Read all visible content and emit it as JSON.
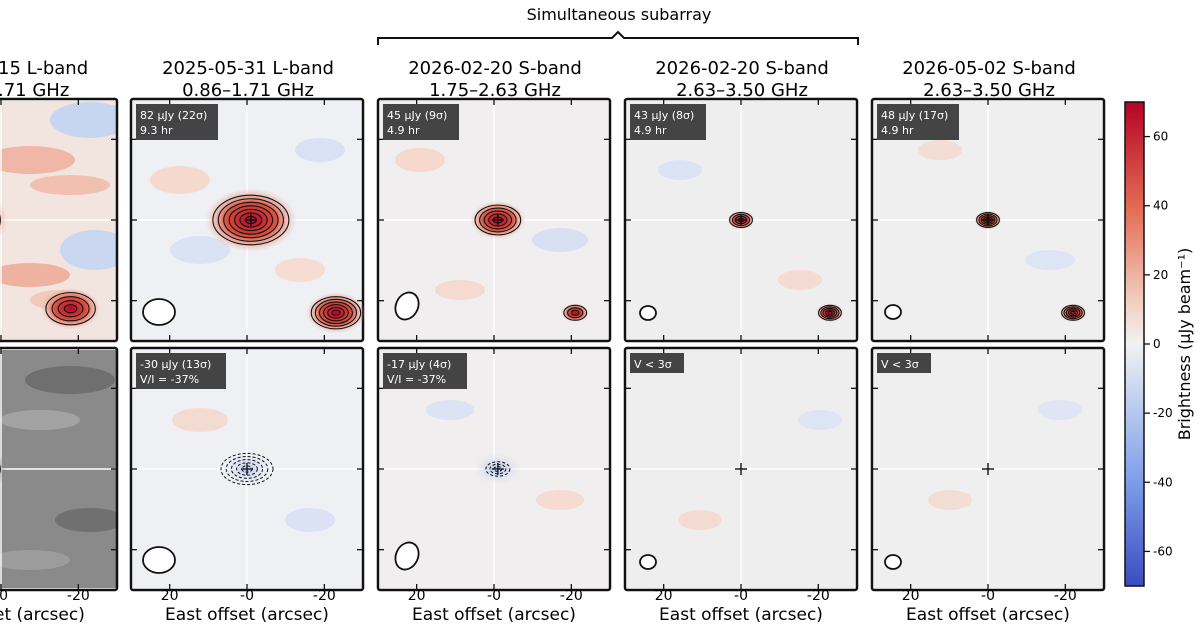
{
  "figure": {
    "subarray_label": "Simultaneous subarray",
    "colorbar_label": "Brightness (μJy beam⁻¹)",
    "colorbar_ticks": [
      "60",
      "40",
      "20",
      "0",
      "-20",
      "-40",
      "-60"
    ],
    "colors": {
      "positive": "#c4232b",
      "zero": "#f3f3f3",
      "negative": "#3b5fc8"
    }
  },
  "chart_data": {
    "type": "heatmap",
    "colorbar": {
      "range": [
        -70,
        70
      ],
      "ticks": [
        60,
        40,
        20,
        0,
        -20,
        -40,
        -60
      ]
    },
    "x_axis": {
      "label": "East offset (arcsec)",
      "ticks": [
        "20",
        "-0",
        "-20"
      ],
      "range": [
        30,
        -30
      ],
      "reversed": true
    },
    "columns": [
      {
        "id": "c0",
        "title": "15  L-band",
        "freq": ".71 GHz",
        "xlabel": "et (arcsec)",
        "xticks": [
          "-0",
          "-20"
        ]
      },
      {
        "id": "c1",
        "title": "2025-05-31  L-band",
        "freq": "0.86–1.71 GHz",
        "xlabel": "East offset (arcsec)",
        "xticks": [
          "20",
          "-0",
          "-20"
        ]
      },
      {
        "id": "c2",
        "title": "2026-02-20  S-band",
        "freq": "1.75–2.63 GHz",
        "xlabel": "East offset (arcsec)",
        "xticks": [
          "20",
          "-0",
          "-20"
        ]
      },
      {
        "id": "c3",
        "title": "2026-02-20  S-band",
        "freq": "2.63–3.50 GHz",
        "xlabel": "East offset (arcsec)",
        "xticks": [
          "20",
          "-0",
          "-20"
        ]
      },
      {
        "id": "c4",
        "title": "2026-05-02  S-band",
        "freq": "2.63–3.50 GHz",
        "xlabel": "East offset (arcsec)",
        "xticks": [
          "20",
          "-0",
          "-20"
        ]
      }
    ],
    "stokes_I": [
      {
        "col": 0,
        "label": null,
        "flux_uJy": null
      },
      {
        "col": 1,
        "label": "82 μJy (22σ)",
        "time": "9.3 hr",
        "flux_uJy": 82,
        "snr": 22
      },
      {
        "col": 2,
        "label": "45 μJy (9σ)",
        "time": "4.9 hr",
        "flux_uJy": 45,
        "snr": 9
      },
      {
        "col": 3,
        "label": "43 μJy (8σ)",
        "time": "4.9 hr",
        "flux_uJy": 43,
        "snr": 8
      },
      {
        "col": 4,
        "label": "48 μJy (17σ)",
        "time": "4.9 hr",
        "flux_uJy": 48,
        "snr": 17
      }
    ],
    "stokes_V": [
      {
        "col": 0,
        "label": null,
        "flux_uJy": null
      },
      {
        "col": 1,
        "label": "-30 μJy (13σ)",
        "frac": "V/I = -37%",
        "flux_uJy": -30,
        "snr": 13
      },
      {
        "col": 2,
        "label": "-17 μJy (4σ)",
        "frac": "V/I = -37%",
        "flux_uJy": -17,
        "snr": 4
      },
      {
        "col": 3,
        "label": "V < 3σ",
        "frac": "",
        "flux_uJy": null
      },
      {
        "col": 4,
        "label": "V < 3σ",
        "frac": "",
        "flux_uJy": null
      }
    ],
    "sources_I": [
      {
        "col": 0,
        "x_arcsec": 10,
        "y_arcsec": 0,
        "peak_uJy": 70,
        "kind": "target"
      },
      {
        "col": 0,
        "x_arcsec": -18,
        "y_arcsec": -22,
        "peak_uJy": 40,
        "kind": "field"
      },
      {
        "col": 1,
        "x_arcsec": -1,
        "y_arcsec": 0,
        "peak_uJy": 70,
        "kind": "target"
      },
      {
        "col": 1,
        "x_arcsec": -23,
        "y_arcsec": -23,
        "peak_uJy": 60,
        "kind": "field"
      },
      {
        "col": 2,
        "x_arcsec": -1,
        "y_arcsec": 0,
        "peak_uJy": 45,
        "kind": "target"
      },
      {
        "col": 2,
        "x_arcsec": -21,
        "y_arcsec": -23,
        "peak_uJy": 30,
        "kind": "field"
      },
      {
        "col": 3,
        "x_arcsec": 0,
        "y_arcsec": 0,
        "peak_uJy": 43,
        "kind": "target"
      },
      {
        "col": 3,
        "x_arcsec": -23,
        "y_arcsec": -23,
        "peak_uJy": 50,
        "kind": "field"
      },
      {
        "col": 4,
        "x_arcsec": 0,
        "y_arcsec": 0,
        "peak_uJy": 48,
        "kind": "target"
      },
      {
        "col": 4,
        "x_arcsec": -22,
        "y_arcsec": -23,
        "peak_uJy": 50,
        "kind": "field"
      }
    ],
    "sources_V": [
      {
        "col": 1,
        "x_arcsec": 0,
        "y_arcsec": 0,
        "peak_uJy": -30
      },
      {
        "col": 2,
        "x_arcsec": -1,
        "y_arcsec": 0,
        "peak_uJy": -17
      }
    ]
  }
}
